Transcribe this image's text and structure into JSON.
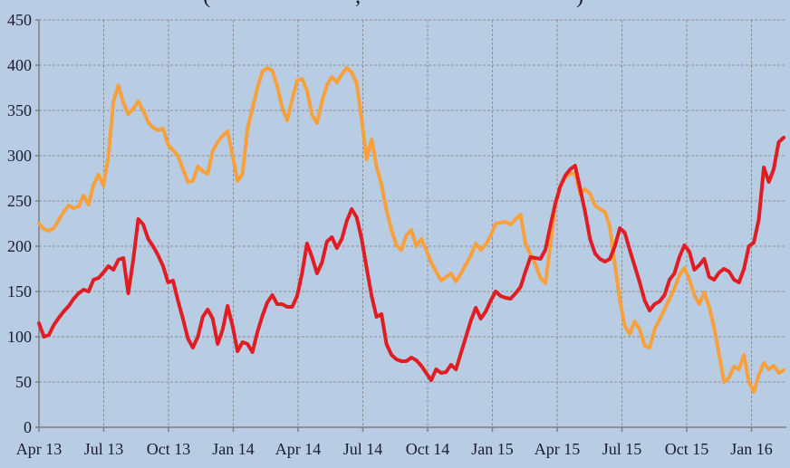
{
  "chart_data": {
    "type": "line",
    "title_fragments": [
      "(",
      ",",
      ")"
    ],
    "title_fragment_x": [
      224,
      392,
      636
    ],
    "x_tick_labels": [
      "Apr 13",
      "Jul 13",
      "Oct 13",
      "Jan 14",
      "Apr 14",
      "Jul 14",
      "Oct 14",
      "Jan 15",
      "Apr 15",
      "Jul 15",
      "Oct 15",
      "Jan 16"
    ],
    "y_ticks": [
      450,
      400,
      350,
      300,
      250,
      200,
      150,
      100,
      50,
      0
    ],
    "y_tick_labels": [
      "450",
      "400",
      "350",
      "300",
      "250",
      "200",
      "150",
      "100",
      "50",
      "0"
    ],
    "ylim": [
      0,
      450
    ],
    "x_unit": "weekly",
    "grid": "dashed",
    "legend": "none",
    "background_color": "#B8CCE4",
    "gridline_color": "#8F8F8F",
    "axis_color": "#7F7F7F",
    "text_color": "#1C1C30",
    "series": [
      {
        "name": "orange-series",
        "color": "#F7A03C",
        "values": [
          225,
          219,
          217,
          220,
          229,
          238,
          245,
          242,
          244,
          256,
          246,
          268,
          279,
          267,
          300,
          360,
          378,
          358,
          346,
          352,
          360,
          350,
          337,
          331,
          328,
          330,
          312,
          306,
          300,
          285,
          271,
          272,
          288,
          283,
          280,
          305,
          315,
          322,
          327,
          300,
          272,
          280,
          330,
          352,
          375,
          393,
          397,
          394,
          377,
          353,
          339,
          362,
          383,
          385,
          372,
          345,
          336,
          360,
          378,
          387,
          381,
          390,
          397,
          392,
          380,
          340,
          296,
          318,
          288,
          268,
          240,
          218,
          201,
          196,
          212,
          218,
          200,
          208,
          196,
          182,
          172,
          162,
          166,
          170,
          161,
          170,
          180,
          190,
          203,
          196,
          202,
          212,
          225,
          226,
          227,
          224,
          230,
          235,
          203,
          191,
          180,
          165,
          159,
          200,
          245,
          266,
          276,
          280,
          281,
          258,
          263,
          258,
          245,
          241,
          238,
          221,
          180,
          140,
          112,
          103,
          117,
          108,
          90,
          88,
          108,
          119,
          130,
          142,
          153,
          168,
          176,
          163,
          146,
          136,
          149,
          133,
          110,
          80,
          50,
          55,
          67,
          64,
          80,
          50,
          39,
          58,
          71,
          64,
          68,
          60,
          63
        ]
      },
      {
        "name": "red-series",
        "color": "#E01D23",
        "values": [
          115,
          100,
          102,
          113,
          121,
          128,
          134,
          142,
          148,
          152,
          150,
          163,
          165,
          171,
          178,
          174,
          185,
          187,
          148,
          185,
          230,
          224,
          208,
          200,
          190,
          178,
          160,
          162,
          140,
          120,
          98,
          88,
          100,
          122,
          130,
          120,
          92,
          108,
          134,
          112,
          84,
          94,
          92,
          83,
          105,
          123,
          138,
          146,
          136,
          136,
          133,
          133,
          145,
          170,
          203,
          188,
          170,
          182,
          205,
          210,
          198,
          208,
          228,
          241,
          232,
          208,
          176,
          145,
          122,
          125,
          92,
          80,
          75,
          73,
          73,
          77,
          74,
          68,
          60,
          52,
          64,
          60,
          61,
          69,
          64,
          82,
          100,
          118,
          132,
          120,
          128,
          140,
          150,
          145,
          143,
          142,
          148,
          155,
          172,
          188,
          187,
          186,
          196,
          222,
          247,
          266,
          278,
          285,
          289,
          264,
          238,
          208,
          192,
          186,
          183,
          186,
          200,
          220,
          215,
          196,
          178,
          160,
          140,
          129,
          136,
          139,
          146,
          163,
          170,
          188,
          201,
          194,
          174,
          179,
          186,
          166,
          163,
          171,
          175,
          172,
          163,
          160,
          175,
          200,
          204,
          230,
          287,
          271,
          285,
          315,
          320
        ]
      }
    ]
  }
}
